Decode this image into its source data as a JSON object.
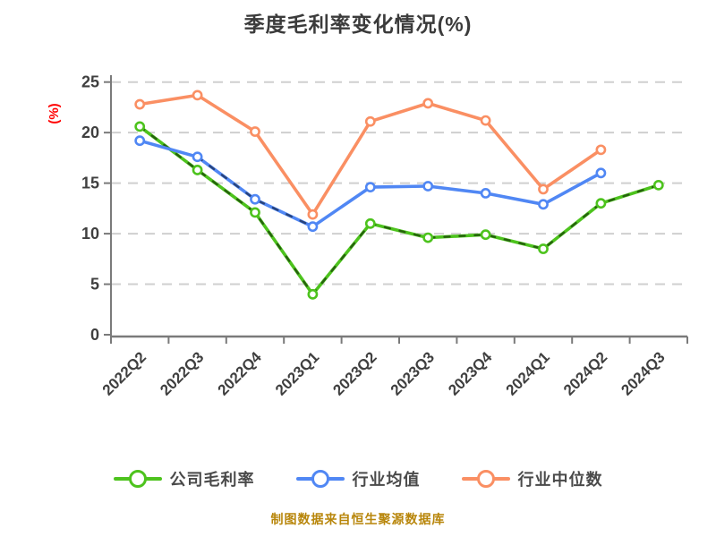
{
  "chart_data": {
    "type": "line",
    "title": "季度毛利率变化情况(%)",
    "ylabel": "(%)",
    "footer": "制图数据来自恒生聚源数据库",
    "categories": [
      "2022Q2",
      "2022Q3",
      "2022Q4",
      "2023Q1",
      "2023Q2",
      "2023Q3",
      "2023Q4",
      "2024Q1",
      "2024Q2",
      "2024Q3"
    ],
    "yticks": [
      0,
      5,
      10,
      15,
      20,
      25
    ],
    "ylim": [
      0,
      25
    ],
    "grid": "horizontal-dashed",
    "legend_position": "bottom",
    "series": [
      {
        "name": "公司毛利率",
        "color": "#4dc31d",
        "values": [
          20.6,
          16.3,
          12.1,
          4.0,
          11.0,
          9.6,
          9.9,
          8.5,
          13.0,
          14.8
        ],
        "dark_dash_overlay": "full",
        "overlay_segments": []
      },
      {
        "name": "行业均值",
        "color": "#5087f4",
        "values": [
          19.2,
          17.6,
          13.4,
          10.7,
          14.6,
          14.7,
          14.0,
          12.9,
          16.0,
          null
        ],
        "dark_dash_overlay": "segments",
        "overlay_segments": [
          1,
          2
        ]
      },
      {
        "name": "行业中位数",
        "color": "#fa8f63",
        "values": [
          22.8,
          23.7,
          20.1,
          11.9,
          21.1,
          22.9,
          21.2,
          14.4,
          18.3,
          null
        ],
        "dark_dash_overlay": "none",
        "overlay_segments": []
      }
    ],
    "colors": {
      "grid_line": "#cfcfcf",
      "axis_line": "#7a7a7a",
      "tick_label": "#3f3f3f",
      "title_text": "#3b3b3b",
      "ylabel_text": "#ff0000",
      "footer_text": "#b8860b",
      "background": "#ffffff",
      "marker_fill": "#ffffff"
    }
  }
}
